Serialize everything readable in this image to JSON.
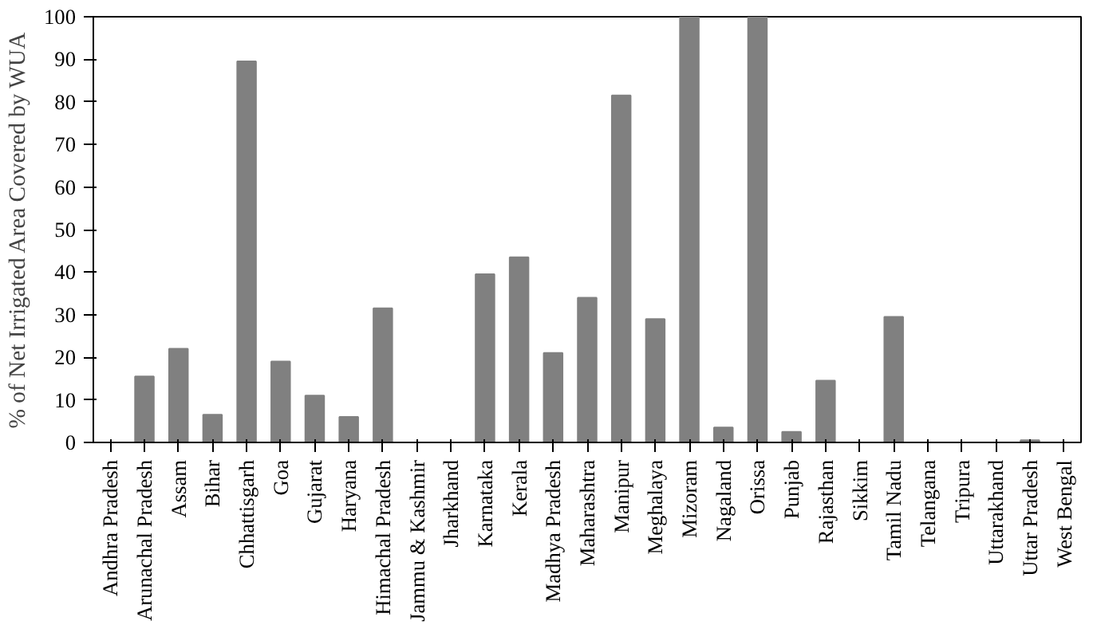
{
  "chart_data": {
    "type": "bar",
    "ylabel": "% of Net Irrigated Area Covered by WUA",
    "categories": [
      "Andhra Pradesh",
      "Arunachal Pradesh",
      "Assam",
      "Bihar",
      "Chhattisgarh",
      "Goa",
      "Gujarat",
      "Haryana",
      "Himachal Pradesh",
      "Jammu & Kashmir",
      "Jharkhand",
      "Karnataka",
      "Kerala",
      "Madhya Pradesh",
      "Maharashtra",
      "Manipur",
      "Meghalaya",
      "Mizoram",
      "Nagaland",
      "Orissa",
      "Punjab",
      "Rajasthan",
      "Sikkim",
      "Tamil Nadu",
      "Telangana",
      "Tripura",
      "Uttarakhand",
      "Uttar Pradesh",
      "West Bengal"
    ],
    "values": [
      0,
      15.5,
      22,
      6.5,
      89.5,
      19,
      11,
      6,
      31.5,
      0,
      0,
      39.5,
      43.5,
      21,
      34,
      81.5,
      29,
      100,
      3.5,
      100,
      2.5,
      14.5,
      0,
      29.5,
      0,
      0,
      0,
      0.5,
      0
    ],
    "color": "#808080",
    "ylim": [
      0,
      100
    ],
    "yticks": [
      0,
      10,
      20,
      30,
      40,
      50,
      60,
      70,
      80,
      90,
      100
    ],
    "grid": false
  }
}
